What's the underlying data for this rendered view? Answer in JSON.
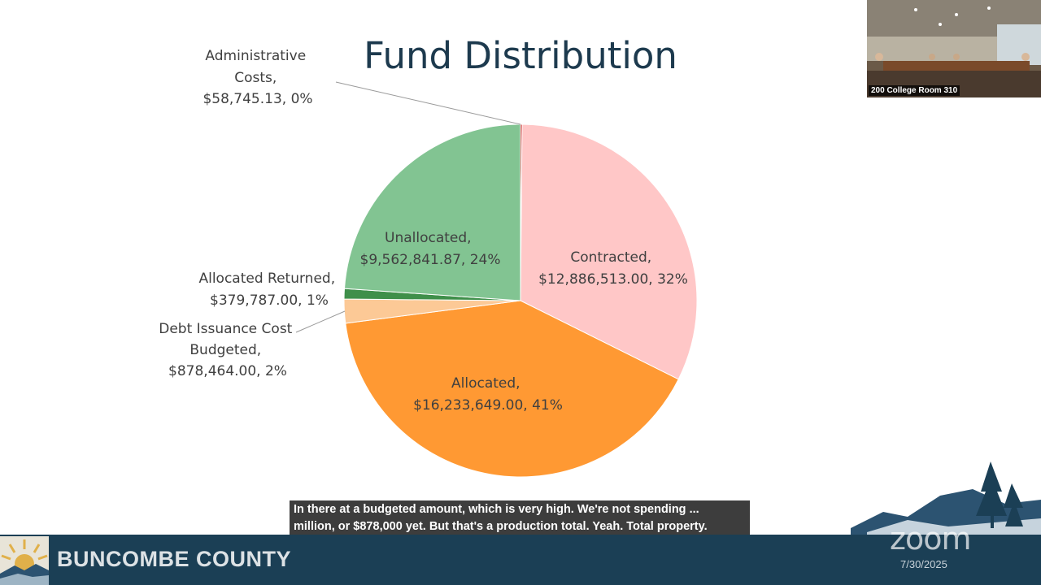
{
  "slide": {
    "title": "Fund Distribution"
  },
  "chart_data": {
    "type": "pie",
    "title": "Fund Distribution",
    "start_angle_deg": 90,
    "direction": "clockwise",
    "slices": [
      {
        "name": "Administrative Costs",
        "value": 58745.13,
        "label_lines": [
          "Administrative",
          "Costs,",
          "$58,745.13, 0%"
        ],
        "color": "#c00000"
      },
      {
        "name": "Contracted",
        "value": 12886513.0,
        "label_lines": [
          "Contracted,",
          "$12,886,513.00, 32%"
        ],
        "color": "#ffc7c7"
      },
      {
        "name": "Allocated",
        "value": 16233649.0,
        "label_lines": [
          "Allocated,",
          "$16,233,649.00, 41%"
        ],
        "color": "#ff9933"
      },
      {
        "name": "Debt Issuance Cost Budgeted",
        "value": 878464.0,
        "label_lines": [
          "Debt Issuance Cost",
          "Budgeted,",
          "$878,464.00, 2%"
        ],
        "color": "#fcc996"
      },
      {
        "name": "Allocated Returned",
        "value": 379787.0,
        "label_lines": [
          "Allocated Returned,",
          "$379,787.00, 1%"
        ],
        "color": "#3f8f4a"
      },
      {
        "name": "Unallocated",
        "value": 9562841.87,
        "label_lines": [
          "Unallocated,",
          "$9,562,841.87, 24%"
        ],
        "color": "#82c492"
      }
    ]
  },
  "video": {
    "room_label": "200 College Room 310"
  },
  "caption": {
    "line1": "In there at a budgeted amount, which is very high. We're not spending ...",
    "line2": "million, or $878,000 yet. But that's a production total. Yeah. Total property."
  },
  "footer": {
    "county_name": "BUNCOMBE COUNTY",
    "watermark": "zoom",
    "date": "7/30/2025"
  },
  "colors": {
    "footer_bg": "#1b3f55",
    "title": "#1d3a4e"
  }
}
